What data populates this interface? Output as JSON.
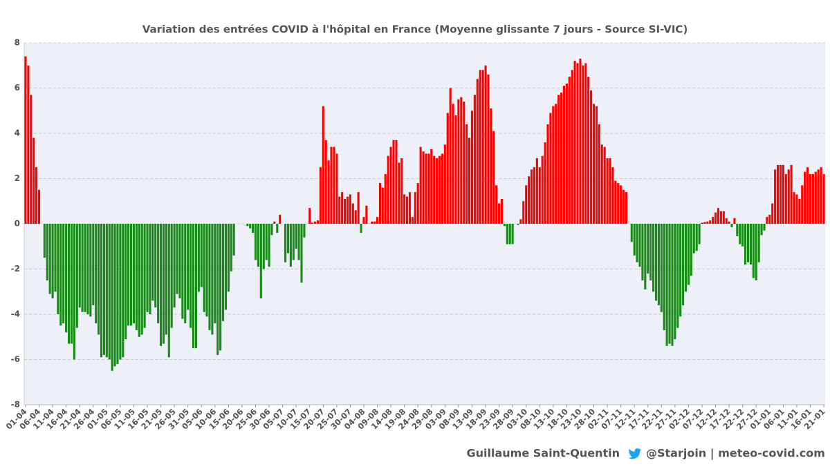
{
  "chart_data": {
    "type": "bar",
    "title": "Variation des entrées COVID à l'hôpital en France (Moyenne glissante 7 jours - Source SI-VIC)",
    "footer_author": "Guillaume Saint-Quentin",
    "footer_source": "@Starjoin | meteo-covid.com",
    "positive_color": "#ff0000",
    "negative_color": "#178a17",
    "ylim": [
      -8,
      8
    ],
    "yticks": [
      -8,
      -6,
      -4,
      -2,
      0,
      2,
      4,
      6,
      8
    ],
    "grid": true,
    "categories": [
      "01-04",
      null,
      null,
      null,
      null,
      "06-04",
      null,
      null,
      null,
      null,
      "11-04",
      null,
      null,
      null,
      null,
      "16-04",
      null,
      null,
      null,
      null,
      "21-04",
      null,
      null,
      null,
      null,
      "26-04",
      null,
      null,
      null,
      null,
      "01-05",
      null,
      null,
      null,
      null,
      "06-05",
      null,
      null,
      null,
      null,
      "11-05",
      null,
      null,
      null,
      null,
      "16-05",
      null,
      null,
      null,
      null,
      "21-05",
      null,
      null,
      null,
      null,
      "26-05",
      null,
      null,
      null,
      null,
      "31-05",
      null,
      null,
      null,
      null,
      "05-06",
      null,
      null,
      null,
      null,
      "10-06",
      null,
      null,
      null,
      null,
      "15-06",
      null,
      null,
      null,
      null,
      "20-06",
      null,
      null,
      null,
      null,
      "25-06",
      null,
      null,
      null,
      null,
      "30-06",
      null,
      null,
      null,
      null,
      "05-07",
      null,
      null,
      null,
      null,
      "10-07",
      null,
      null,
      null,
      null,
      "15-07",
      null,
      null,
      null,
      null,
      "20-07",
      null,
      null,
      null,
      null,
      "25-07",
      null,
      null,
      null,
      null,
      "30-07",
      null,
      null,
      null,
      null,
      "04-08",
      null,
      null,
      null,
      null,
      "09-08",
      null,
      null,
      null,
      null,
      "14-08",
      null,
      null,
      null,
      null,
      "19-08",
      null,
      null,
      null,
      null,
      "24-08",
      null,
      null,
      null,
      null,
      "29-08",
      null,
      null,
      null,
      null,
      "03-09",
      null,
      null,
      null,
      null,
      "08-09",
      null,
      null,
      null,
      null,
      "13-09",
      null,
      null,
      null,
      null,
      "18-09",
      null,
      null,
      null,
      null,
      "23-09",
      null,
      null,
      null,
      null,
      "28-09",
      null,
      null,
      null,
      null,
      "03-10",
      null,
      null,
      null,
      null,
      "08-10",
      null,
      null,
      null,
      null,
      "13-10",
      null,
      null,
      null,
      null,
      "18-10",
      null,
      null,
      null,
      null,
      "23-10",
      null,
      null,
      null,
      null,
      "28-10",
      null,
      null,
      null,
      null,
      "02-11",
      null,
      null,
      null,
      null,
      "07-11",
      null,
      null,
      null,
      null,
      "12-11",
      null,
      null,
      null,
      null,
      "17-11",
      null,
      null,
      null,
      null,
      "22-11",
      null,
      null,
      null,
      null,
      "27-11",
      null,
      null,
      null,
      null,
      "02-12",
      null,
      null,
      null,
      null,
      "07-12",
      null,
      null,
      null,
      null,
      "12-12",
      null,
      null,
      null,
      null,
      "17-12",
      null,
      null,
      null,
      null,
      "22-12",
      null,
      null,
      null,
      null,
      "27-12",
      null,
      null,
      null,
      null,
      "01-01",
      null,
      null,
      null,
      null,
      "06-01",
      null,
      null,
      null,
      null,
      "11-01",
      null,
      null,
      null,
      null,
      "16-01",
      null,
      null,
      null,
      null,
      "21-01"
    ],
    "values": [
      7.4,
      7.0,
      5.7,
      3.8,
      2.5,
      1.5,
      0,
      -1.5,
      -2.5,
      -3.1,
      -3.3,
      -3.0,
      -4.0,
      -4.5,
      -4.4,
      -4.8,
      -5.3,
      -5.3,
      -6.0,
      -4.6,
      -3.7,
      -3.9,
      -3.9,
      -4.0,
      -4.1,
      -3.6,
      -4.4,
      -4.9,
      -5.9,
      -5.8,
      -5.9,
      -6.0,
      -6.5,
      -6.3,
      -6.2,
      -6.0,
      -5.9,
      -5.1,
      -4.5,
      -4.5,
      -4.4,
      -4.7,
      -5.0,
      -4.9,
      -4.6,
      -3.9,
      -4.0,
      -3.4,
      -3.7,
      -4.4,
      -5.4,
      -5.3,
      -4.9,
      -5.9,
      -4.6,
      -3.7,
      -3.1,
      -3.3,
      -4.2,
      -4.4,
      -3.8,
      -4.6,
      -5.5,
      -5.5,
      -3.0,
      -2.8,
      -3.9,
      -4.1,
      -4.7,
      -4.9,
      -4.4,
      -5.8,
      -5.6,
      -4.3,
      -3.8,
      -3.0,
      -2.1,
      -1.4,
      0,
      0,
      0,
      0,
      -0.1,
      -0.2,
      -0.4,
      -1.6,
      -1.9,
      -3.3,
      -2.0,
      -1.6,
      -1.9,
      -0.5,
      0.1,
      -0.4,
      0.4,
      0,
      -1.7,
      -1.3,
      -1.9,
      -1.6,
      -1.1,
      -1.6,
      -2.6,
      -0.6,
      0,
      0.7,
      0.05,
      0.1,
      0.15,
      2.5,
      5.2,
      3.7,
      2.8,
      3.4,
      3.4,
      3.1,
      1.2,
      1.4,
      1.1,
      1.2,
      1.3,
      0.9,
      0.6,
      1.4,
      -0.4,
      0.3,
      0.8,
      0,
      0.1,
      0.1,
      0.3,
      1.8,
      1.6,
      2.2,
      3.0,
      3.4,
      3.7,
      3.7,
      2.7,
      2.9,
      1.3,
      1.2,
      1.4,
      0.3,
      1.4,
      1.8,
      3.4,
      3.2,
      3.1,
      3.1,
      3.3,
      3.0,
      2.9,
      3.0,
      3.1,
      3.5,
      4.9,
      6.0,
      5.3,
      4.8,
      5.5,
      5.6,
      5.4,
      4.4,
      3.8,
      5.0,
      5.7,
      6.4,
      6.8,
      6.8,
      7.0,
      6.6,
      5.1,
      4.1,
      1.7,
      0.9,
      1.1,
      -0.1,
      -0.9,
      -0.9,
      -0.9,
      0,
      -0.05,
      0.2,
      1.0,
      1.7,
      2.1,
      2.4,
      2.5,
      2.9,
      2.5,
      3.0,
      3.6,
      4.4,
      4.9,
      5.2,
      5.3,
      5.7,
      5.8,
      6.1,
      6.2,
      6.5,
      6.8,
      7.2,
      7.1,
      7.3,
      7.0,
      7.1,
      6.5,
      5.9,
      5.3,
      5.2,
      4.4,
      3.5,
      3.4,
      2.9,
      2.9,
      2.5,
      1.9,
      1.8,
      1.7,
      1.5,
      1.4,
      0,
      -0.8,
      -1.4,
      -1.7,
      -1.9,
      -2.5,
      -2.9,
      -2.2,
      -2.5,
      -3.0,
      -3.4,
      -3.6,
      -3.9,
      -4.7,
      -5.4,
      -5.3,
      -5.4,
      -5.1,
      -4.6,
      -4.1,
      -3.6,
      -3.0,
      -2.7,
      -2.3,
      -1.3,
      -1.2,
      -0.9,
      0.05,
      0.08,
      0.1,
      0.15,
      0.3,
      0.5,
      0.7,
      0.55,
      0.55,
      0.25,
      0.1,
      -0.15,
      0.25,
      -0.55,
      -0.9,
      -1.0,
      -1.8,
      -1.7,
      -1.8,
      -2.4,
      -2.5,
      -1.7,
      -0.5,
      -0.3,
      0.3,
      0.4,
      0.9,
      2.4,
      2.6,
      2.6,
      2.6,
      2.2,
      2.4,
      2.6,
      1.4,
      1.3,
      1.1,
      1.7,
      2.3,
      2.5,
      2.2,
      2.2,
      2.3,
      2.4,
      2.5,
      2.2
    ]
  }
}
